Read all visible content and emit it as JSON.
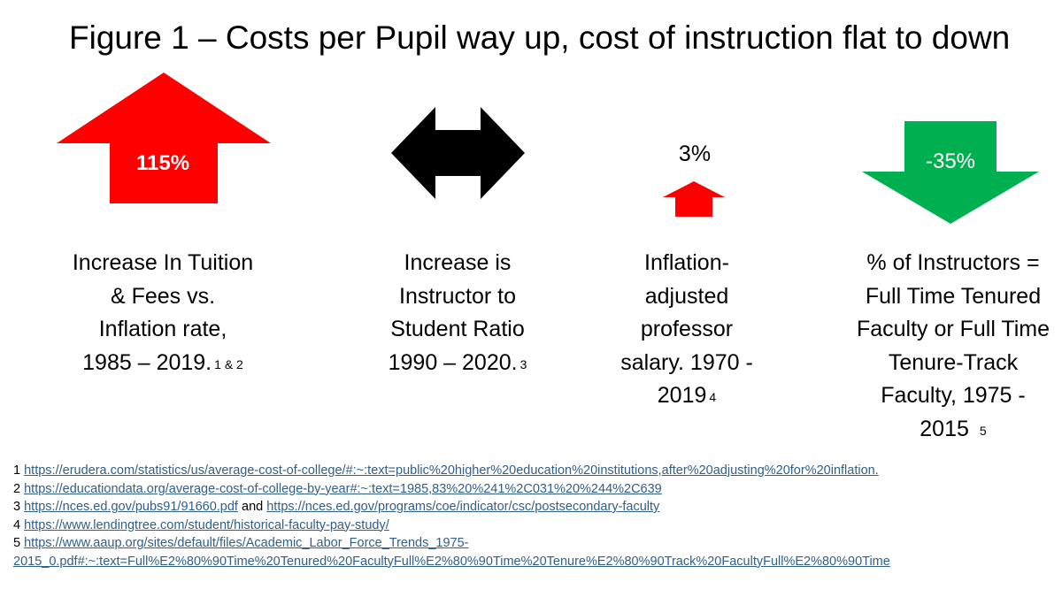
{
  "title": "Figure 1 – Costs per Pupil way up, cost of instruction flat to down",
  "colors": {
    "up_red": "#ff0000",
    "neutral_black": "#000000",
    "down_green": "#00b050",
    "link": "#2f5f8a"
  },
  "items": [
    {
      "arrow": "up-arrow-icon",
      "value": "115%",
      "caption_lines": [
        "Increase In Tuition",
        "& Fees vs.",
        "Inflation rate,",
        "1985 – 2019."
      ],
      "footnote": "1 & 2"
    },
    {
      "arrow": "double-arrow-icon",
      "value": "",
      "caption_lines": [
        "Increase is",
        "Instructor to",
        "Student Ratio",
        "1990 – 2020."
      ],
      "footnote": "3"
    },
    {
      "arrow": "small-up-arrow-icon",
      "value": "3%",
      "caption_lines": [
        "Inflation-",
        "adjusted",
        "professor",
        "salary. 1970 -",
        "2019"
      ],
      "footnote": "4"
    },
    {
      "arrow": "down-arrow-icon",
      "value": "-35%",
      "caption_lines": [
        "% of Instructors =",
        "Full Time Tenured",
        "Faculty or Full Time",
        "Tenure-Track",
        "Faculty, 1975 -",
        "2015"
      ],
      "footnote": "5"
    }
  ],
  "references": {
    "r1": {
      "num": "1",
      "url": "https://erudera.com/statistics/us/average-cost-of-college/#:~:text=public%20higher%20education%20institutions,after%20adjusting%20for%20inflation."
    },
    "r2": {
      "num": "2",
      "url": "https://educationdata.org/average-cost-of-college-by-year#:~:text=1985,83%20%241%2C031%20%244%2C639"
    },
    "r3": {
      "num": "3",
      "url_a": "https://nces.ed.gov/pubs91/91660.pdf",
      "connector": "and",
      "url_b": "https://nces.ed.gov/programs/coe/indicator/csc/postsecondary-faculty"
    },
    "r4": {
      "num": "4",
      "url": "https://www.lendingtree.com/student/historical-faculty-pay-study/"
    },
    "r5": {
      "num": "5",
      "url_line1": "https://www.aaup.org/sites/default/files/Academic_Labor_Force_Trends_1975-",
      "url_line2": "2015_0.pdf#:~:text=Full%E2%80%90Time%20Tenured%20FacultyFull%E2%80%90Time%20Tenure%E2%80%90Track%20FacultyFull%E2%80%90Time"
    }
  }
}
